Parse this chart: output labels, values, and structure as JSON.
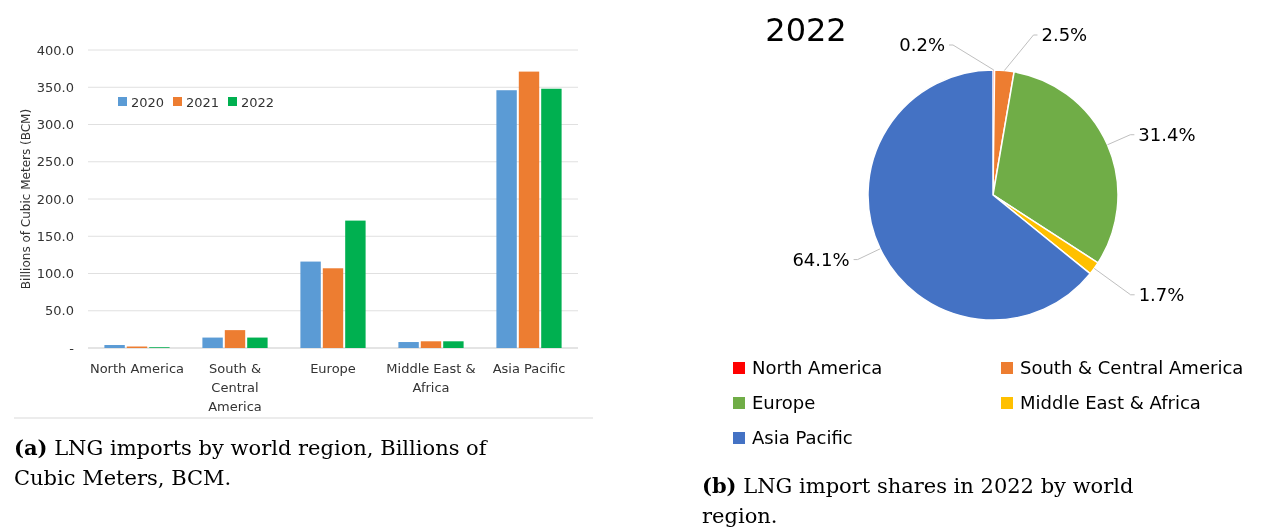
{
  "chart_data": [
    {
      "type": "bar",
      "ylabel": "Billions of Cubic Meters (BCM)",
      "categories": [
        "North America",
        "South & Central America",
        "Europe",
        "Middle East & Africa",
        "Asia Pacific"
      ],
      "series": [
        {
          "name": "2020",
          "color": "#5b9bd5",
          "values": [
            4,
            14,
            116,
            8,
            346
          ]
        },
        {
          "name": "2021",
          "color": "#ed7d31",
          "values": [
            2,
            24,
            107,
            9,
            371
          ]
        },
        {
          "name": "2022",
          "color": "#00b050",
          "values": [
            1,
            14,
            171,
            9,
            348
          ]
        }
      ],
      "ylim": [
        0,
        400
      ],
      "yticks": [
        {
          "value": 0,
          "label": "-"
        },
        {
          "value": 50,
          "label": "50.0"
        },
        {
          "value": 100,
          "label": "100.0"
        },
        {
          "value": 150,
          "label": "150.0"
        },
        {
          "value": 200,
          "label": "200.0"
        },
        {
          "value": 250,
          "label": "250.0"
        },
        {
          "value": 300,
          "label": "300.0"
        },
        {
          "value": 350,
          "label": "350.0"
        },
        {
          "value": 400,
          "label": "400.0"
        }
      ],
      "grid": "y",
      "legend": "top left",
      "annotations": [
        "(a) LNG imports by world region, Billions of Cubic Meters, BCM."
      ]
    },
    {
      "type": "pie",
      "title": "2022",
      "categories": [
        "North America",
        "South & Central America",
        "Europe",
        "Middle East & Africa",
        "Asia Pacific"
      ],
      "values": [
        0.2,
        2.5,
        31.4,
        1.7,
        64.1
      ],
      "colors": [
        "#ff0000",
        "#ed7d31",
        "#70ad47",
        "#ffc000",
        "#4472c4"
      ],
      "value_labels": [
        "0.2%",
        "2.5%",
        "31.4%",
        "1.7%",
        "64.1%"
      ],
      "legend": "bottom",
      "annotations": [
        "(b) LNG import shares in 2022 by world region."
      ]
    }
  ]
}
